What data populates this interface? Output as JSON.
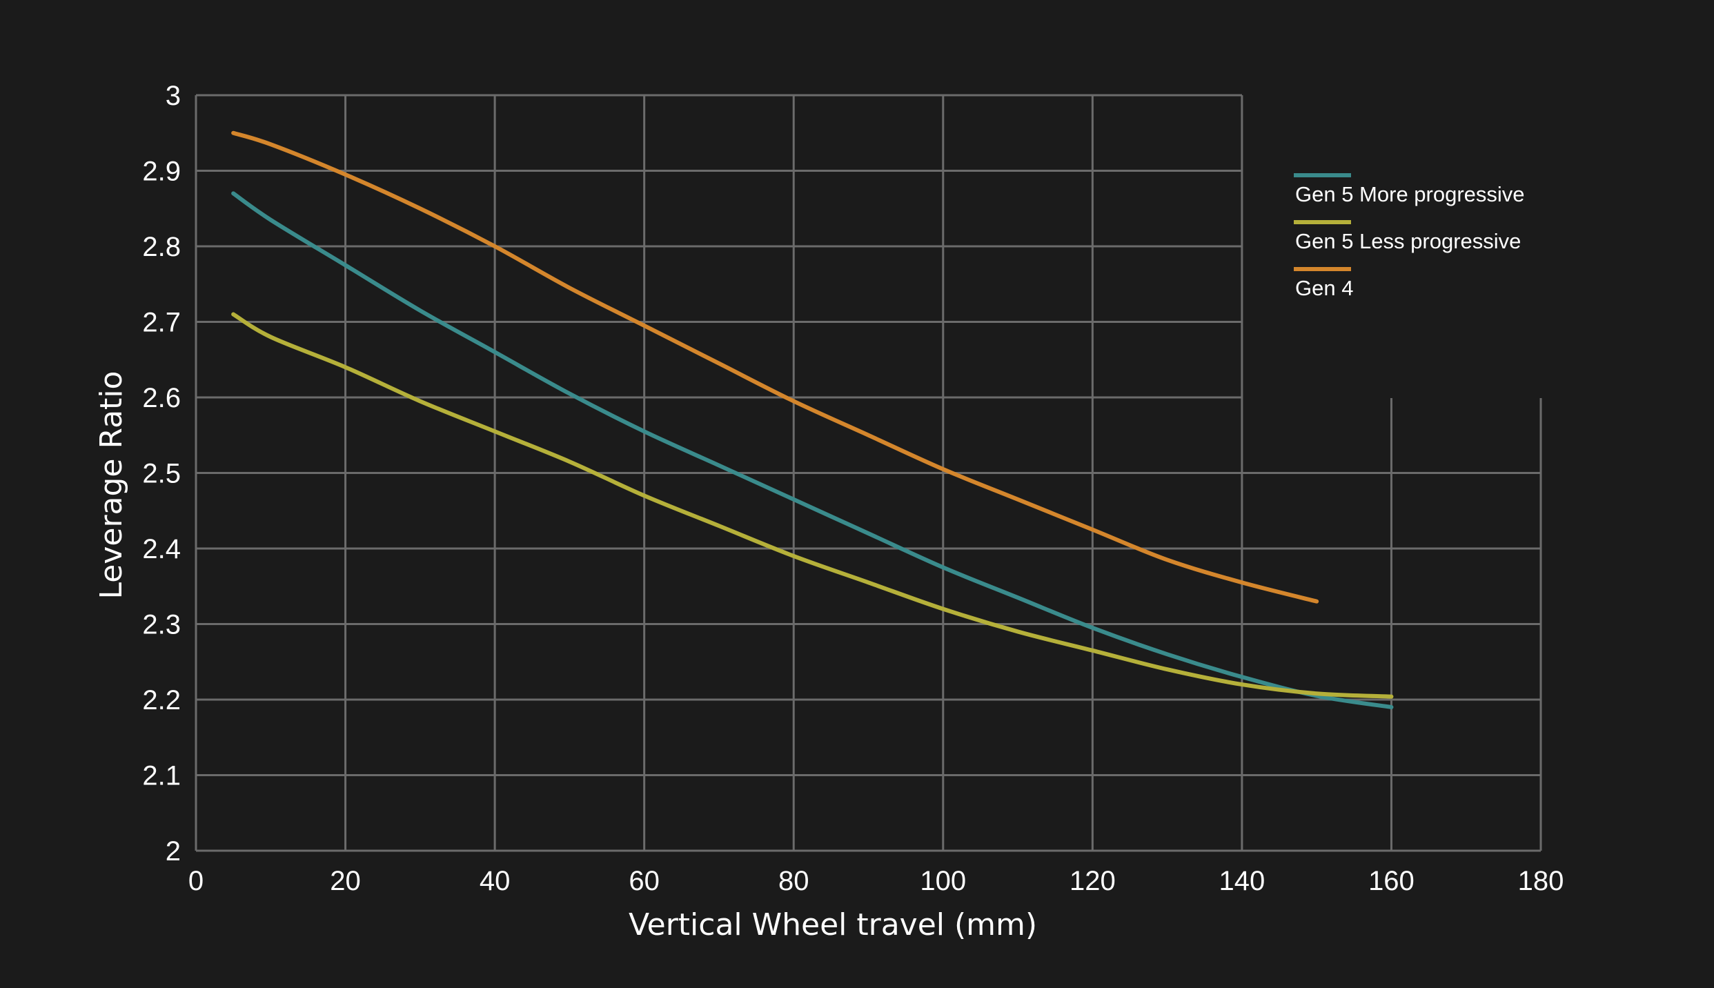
{
  "chart_data": {
    "type": "line",
    "xlabel": "Vertical Wheel travel (mm)",
    "ylabel": "Leverage Ratio",
    "xlim": [
      0,
      180
    ],
    "ylim": [
      2,
      3
    ],
    "xticks": [
      "0",
      "20",
      "40",
      "60",
      "80",
      "100",
      "120",
      "140",
      "160",
      "180"
    ],
    "yticks": [
      "2",
      "2.1",
      "2.2",
      "2.3",
      "2.4",
      "2.5",
      "2.6",
      "2.7",
      "2.8",
      "2.9",
      "3"
    ],
    "grid": true,
    "legend_position": "top-right",
    "series": [
      {
        "name": "Gen 5 More progressive",
        "color": "#3a8b8c",
        "x": [
          5,
          10,
          20,
          30,
          40,
          50,
          60,
          70,
          80,
          90,
          100,
          110,
          120,
          130,
          140,
          150,
          160
        ],
        "y": [
          2.87,
          2.835,
          2.775,
          2.715,
          2.66,
          2.605,
          2.555,
          2.51,
          2.465,
          2.42,
          2.375,
          2.335,
          2.295,
          2.26,
          2.23,
          2.205,
          2.19
        ]
      },
      {
        "name": "Gen 5 Less progressive",
        "color": "#b5b03a",
        "x": [
          5,
          10,
          20,
          30,
          40,
          50,
          60,
          70,
          80,
          90,
          100,
          110,
          120,
          130,
          140,
          150,
          160
        ],
        "y": [
          2.71,
          2.68,
          2.64,
          2.595,
          2.555,
          2.515,
          2.47,
          2.43,
          2.39,
          2.355,
          2.32,
          2.29,
          2.265,
          2.24,
          2.22,
          2.208,
          2.204
        ]
      },
      {
        "name": "Gen 4",
        "color": "#d4862c",
        "x": [
          5,
          10,
          20,
          30,
          40,
          50,
          60,
          70,
          80,
          90,
          100,
          110,
          120,
          130,
          140,
          150
        ],
        "y": [
          2.95,
          2.935,
          2.895,
          2.85,
          2.8,
          2.745,
          2.695,
          2.645,
          2.595,
          2.55,
          2.505,
          2.465,
          2.425,
          2.385,
          2.355,
          2.33
        ]
      }
    ]
  }
}
